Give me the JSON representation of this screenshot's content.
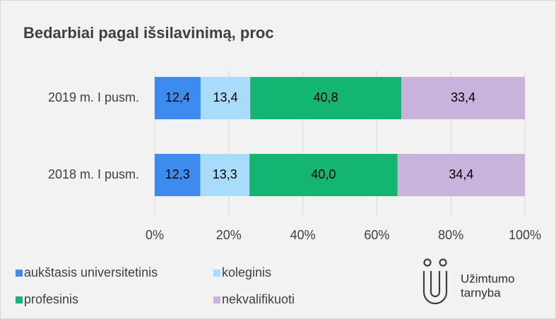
{
  "chart_data": {
    "type": "stacked_barh",
    "title": "Bedarbiai pagal išsilavinimą, proc",
    "categories": [
      "2019 m. I pusm.",
      "2018 m. I pusm."
    ],
    "series": [
      {
        "name": "aukštasis universitetinis",
        "color": "#3d8bef",
        "values": [
          12.4,
          12.3
        ],
        "value_labels": [
          "12,4",
          "12,3"
        ]
      },
      {
        "name": "koleginis",
        "color": "#a9dcfb",
        "values": [
          13.4,
          13.3
        ],
        "value_labels": [
          "13,4",
          "13,3"
        ]
      },
      {
        "name": "profesinis",
        "color": "#14b472",
        "values": [
          40.8,
          40.0
        ],
        "value_labels": [
          "40,8",
          "40,0"
        ]
      },
      {
        "name": "nekvalifikuoti",
        "color": "#c9b3dc",
        "values": [
          33.4,
          34.4
        ],
        "value_labels": [
          "33,4",
          "34,4"
        ]
      }
    ],
    "xlim": [
      0,
      100
    ],
    "xticks": [
      {
        "value": 0,
        "label": "0%"
      },
      {
        "value": 20,
        "label": "20%"
      },
      {
        "value": 40,
        "label": "40%"
      },
      {
        "value": 60,
        "label": "60%"
      },
      {
        "value": 80,
        "label": "80%"
      },
      {
        "value": 100,
        "label": "100%"
      }
    ],
    "grid": true
  },
  "logo": {
    "line1": "Užimtumo",
    "line2": "tarnyba"
  }
}
